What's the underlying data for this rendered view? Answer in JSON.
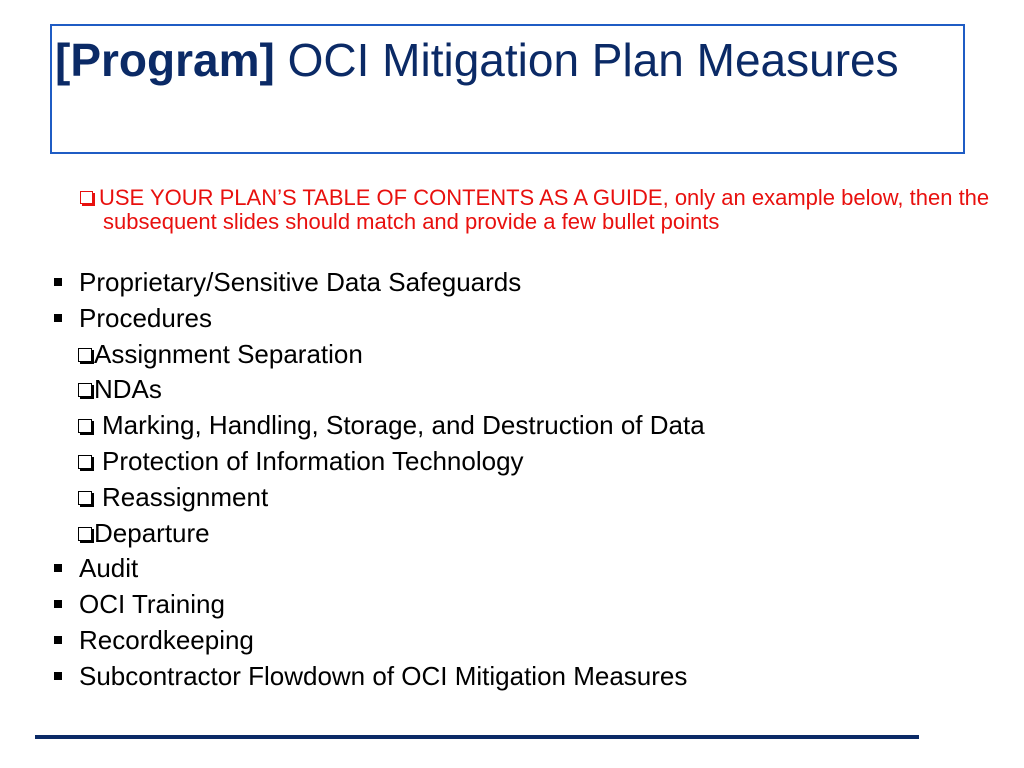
{
  "title": {
    "bold": "[Program]",
    "rest": " OCI Mitigation Plan Measures"
  },
  "note": "USE YOUR PLAN’S TABLE OF CONTENTS AS A GUIDE, only an example below, then the subsequent slides should match and provide a few bullet points",
  "items": [
    {
      "level": 1,
      "text": "Proprietary/Sensitive Data Safeguards"
    },
    {
      "level": 1,
      "text": "Procedures"
    },
    {
      "level": 2,
      "text": "Assignment Separation"
    },
    {
      "level": 2,
      "text": "NDAs"
    },
    {
      "level": 2,
      "text": "Marking, Handling, Storage, and Destruction of Data"
    },
    {
      "level": 2,
      "text": "Protection of Information Technology"
    },
    {
      "level": 2,
      "text": "Reassignment"
    },
    {
      "level": 2,
      "text": "Departure"
    },
    {
      "level": 1,
      "text": "Audit"
    },
    {
      "level": 1,
      "text": "OCI Training"
    },
    {
      "level": 1,
      "text": "Recordkeeping"
    },
    {
      "level": 1,
      "text": "Subcontractor Flowdown of OCI Mitigation Measures"
    }
  ],
  "colors": {
    "title": "#0b2a66",
    "title_border": "#1f5cc4",
    "note": "#e8100e"
  }
}
